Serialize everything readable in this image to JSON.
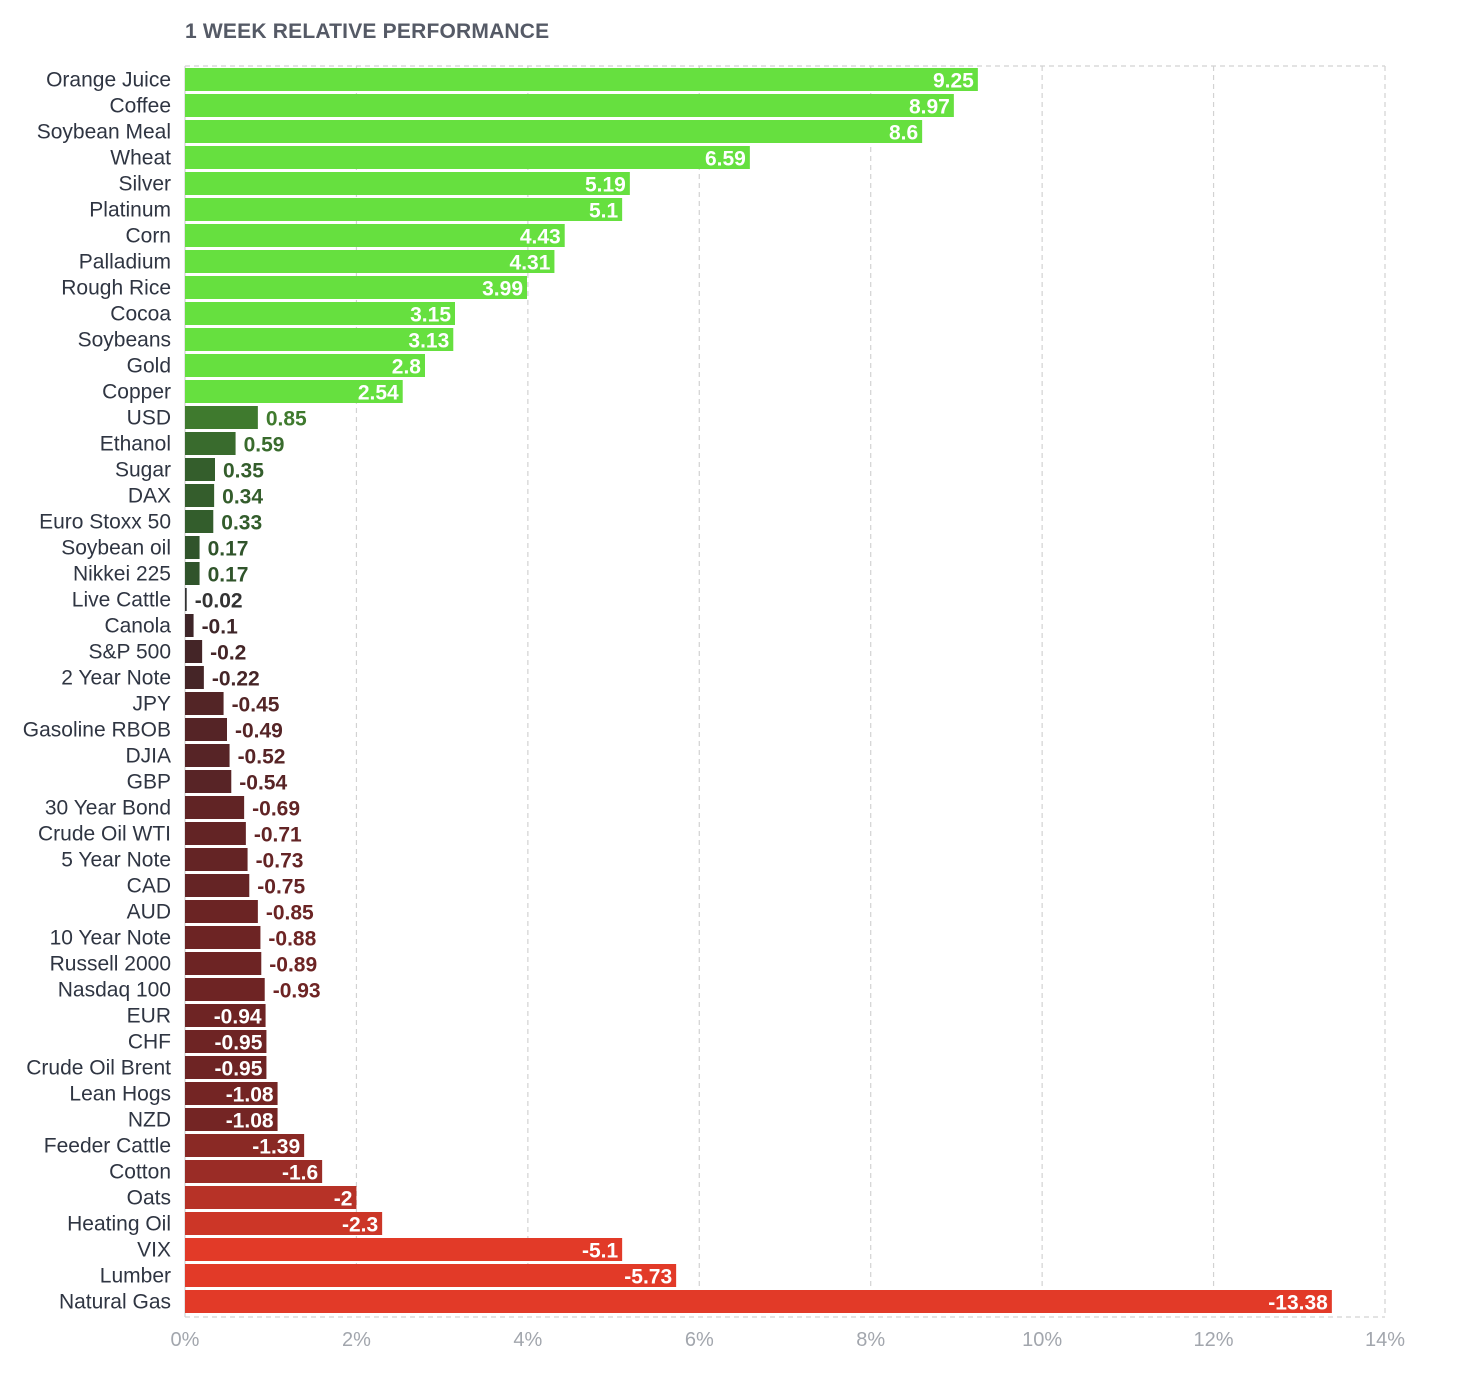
{
  "chart_data": {
    "type": "bar",
    "orientation": "horizontal",
    "title": "1 WEEK RELATIVE PERFORMANCE",
    "xlabel": "",
    "ylabel": "",
    "xlim": [
      0,
      14
    ],
    "x_ticks": [
      0,
      2,
      4,
      6,
      8,
      10,
      12,
      14
    ],
    "x_tick_labels": [
      "0%",
      "2%",
      "4%",
      "6%",
      "8%",
      "10%",
      "12%",
      "14%"
    ],
    "bar_length": "absolute value",
    "grid": "vertical dashed",
    "categories": [
      "Orange Juice",
      "Coffee",
      "Soybean Meal",
      "Wheat",
      "Silver",
      "Platinum",
      "Corn",
      "Palladium",
      "Rough Rice",
      "Cocoa",
      "Soybeans",
      "Gold",
      "Copper",
      "USD",
      "Ethanol",
      "Sugar",
      "DAX",
      "Euro Stoxx 50",
      "Soybean oil",
      "Nikkei 225",
      "Live Cattle",
      "Canola",
      "S&P 500",
      "2 Year Note",
      "JPY",
      "Gasoline RBOB",
      "DJIA",
      "GBP",
      "30 Year Bond",
      "Crude Oil WTI",
      "5 Year Note",
      "CAD",
      "AUD",
      "10 Year Note",
      "Russell 2000",
      "Nasdaq 100",
      "EUR",
      "CHF",
      "Crude Oil Brent",
      "Lean Hogs",
      "NZD",
      "Feeder Cattle",
      "Cotton",
      "Oats",
      "Heating Oil",
      "VIX",
      "Lumber",
      "Natural Gas"
    ],
    "values": [
      9.25,
      8.97,
      8.6,
      6.59,
      5.19,
      5.1,
      4.43,
      4.31,
      3.99,
      3.15,
      3.13,
      2.8,
      2.54,
      0.85,
      0.59,
      0.35,
      0.34,
      0.33,
      0.17,
      0.17,
      -0.02,
      -0.1,
      -0.2,
      -0.22,
      -0.45,
      -0.49,
      -0.52,
      -0.54,
      -0.69,
      -0.71,
      -0.73,
      -0.75,
      -0.85,
      -0.88,
      -0.89,
      -0.93,
      -0.94,
      -0.95,
      -0.95,
      -1.08,
      -1.08,
      -1.39,
      -1.6,
      -2,
      -2.3,
      -5.1,
      -5.73,
      -13.38
    ],
    "value_labels": [
      "9.25",
      "8.97",
      "8.6",
      "6.59",
      "5.19",
      "5.1",
      "4.43",
      "4.31",
      "3.99",
      "3.15",
      "3.13",
      "2.8",
      "2.54",
      "0.85",
      "0.59",
      "0.35",
      "0.34",
      "0.33",
      "0.17",
      "0.17",
      "-0.02",
      "-0.1",
      "-0.2",
      "-0.22",
      "-0.45",
      "-0.49",
      "-0.52",
      "-0.54",
      "-0.69",
      "-0.71",
      "-0.73",
      "-0.75",
      "-0.85",
      "-0.88",
      "-0.89",
      "-0.93",
      "-0.94",
      "-0.95",
      "-0.95",
      "-1.08",
      "-1.08",
      "-1.39",
      "-1.6",
      "-2",
      "-2.3",
      "-5.1",
      "-5.73",
      "-13.38"
    ],
    "colors": {
      "strong_positive": "#66e03f",
      "weak_positive_light": "#3f7a2e",
      "weak_positive_dark": "#2c4a2a",
      "near_zero": "#333333",
      "weak_negative_dark": "#3b2528",
      "weak_negative_mid": "#6e2424",
      "strong_negative": "#e23a28",
      "grid": "#d2d2d2",
      "axis_text": "#a2a6ad",
      "label_text": "#2f3542"
    }
  }
}
